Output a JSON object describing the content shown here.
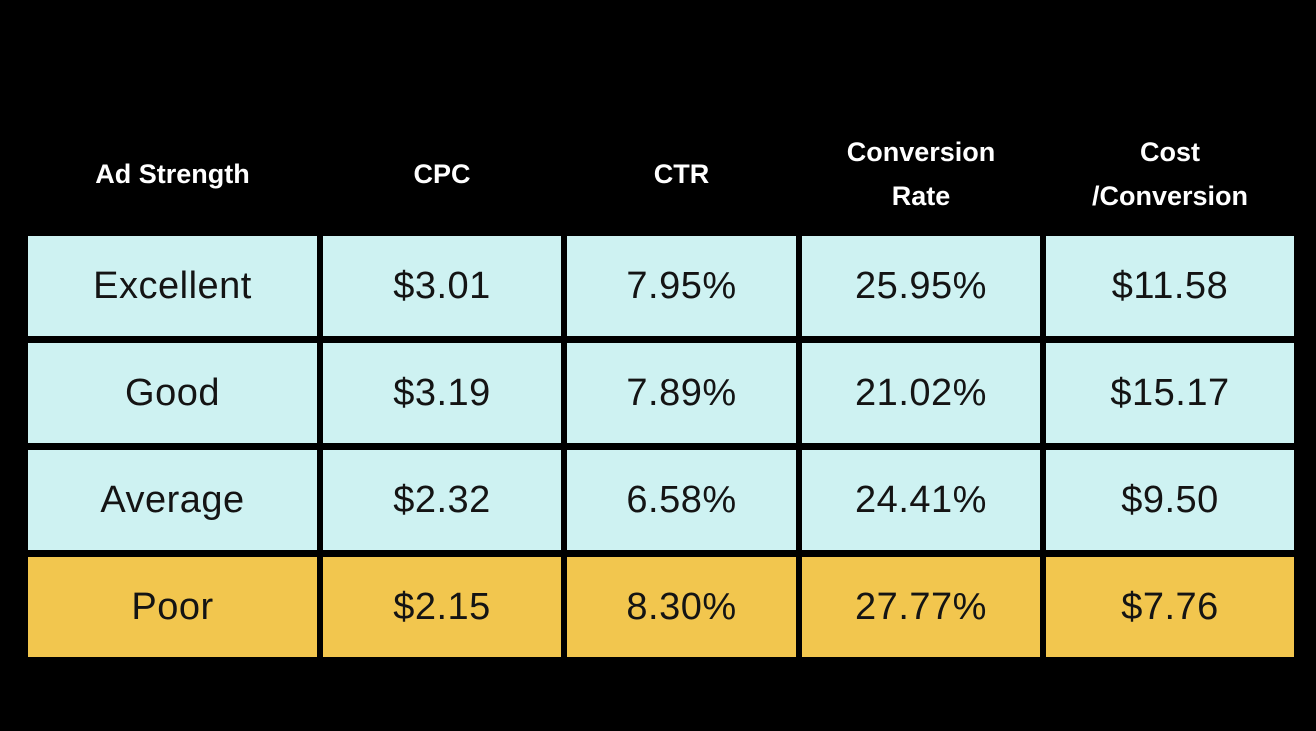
{
  "chart_data": {
    "type": "table",
    "title": "",
    "columns": [
      "Ad Strength",
      "CPC",
      "CTR",
      "Conversion Rate",
      "Cost /Conversion"
    ],
    "rows": [
      {
        "cells": [
          "Excellent",
          "$3.01",
          "7.95%",
          "25.95%",
          "$11.58"
        ],
        "highlight": false
      },
      {
        "cells": [
          "Good",
          "$3.19",
          "7.89%",
          "21.02%",
          "$15.17"
        ],
        "highlight": false
      },
      {
        "cells": [
          "Average",
          "$2.32",
          "6.58%",
          "24.41%",
          "$9.50"
        ],
        "highlight": false
      },
      {
        "cells": [
          "Poor",
          "$2.15",
          "8.30%",
          "27.77%",
          "$7.76"
        ],
        "highlight": true
      }
    ],
    "layout": {
      "header_position": "top",
      "grid": "gapped-cells-on-black"
    }
  },
  "colors": {
    "background": "#000000",
    "cell_default": "#cef2f2",
    "cell_highlight": "#f2c64e",
    "header_text": "#ffffff",
    "cell_text": "#141414"
  }
}
